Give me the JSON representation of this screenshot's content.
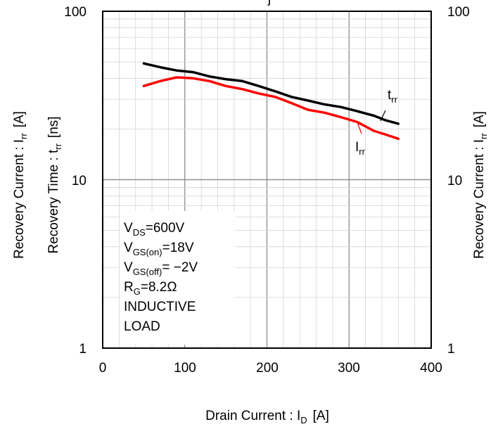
{
  "chart_data": {
    "type": "line",
    "x_axis": {
      "label": "Drain Current : I",
      "label_sub": "D",
      "label_unit": "[A]",
      "range": [
        0,
        400
      ],
      "ticks": [
        "0",
        "100",
        "200",
        "300",
        "400"
      ]
    },
    "y_axis_left": [
      {
        "text": "Recovery Current : I",
        "sub": "rr",
        "unit": "[A]"
      },
      {
        "text": "Recovery Time : t",
        "sub": "rr",
        "unit": "[ns]"
      }
    ],
    "y_axis_right": {
      "text": "Recovery Current : I",
      "sub": "rr",
      "unit": "[A]"
    },
    "y_scale": "log",
    "y_range": [
      1,
      100
    ],
    "y_ticks": [
      "1",
      "10",
      "100"
    ],
    "grid": true,
    "series": [
      {
        "name": "trr",
        "color": "#000000",
        "x": [
          50,
          70,
          90,
          110,
          130,
          150,
          170,
          190,
          210,
          230,
          250,
          270,
          290,
          310,
          330,
          345,
          360
        ],
        "y": [
          49,
          46.5,
          44.5,
          43.5,
          41,
          39.5,
          38.5,
          36,
          33.5,
          31,
          29.5,
          28,
          27,
          25.5,
          24,
          22.5,
          21.5
        ]
      },
      {
        "name": "Irr",
        "color": "#ff0000",
        "x": [
          50,
          70,
          90,
          110,
          130,
          150,
          170,
          190,
          210,
          230,
          250,
          270,
          290,
          310,
          330,
          345,
          360
        ],
        "y": [
          36,
          38.5,
          40.5,
          40,
          38.5,
          36,
          34.5,
          32.5,
          31,
          28.5,
          26,
          25,
          23.5,
          22,
          19.5,
          18.5,
          17.5
        ]
      }
    ],
    "series_labels": [
      {
        "main": "t",
        "sub": "rr"
      },
      {
        "main": "I",
        "sub": "rr"
      }
    ],
    "conditions": [
      {
        "main": "V",
        "sub": "DS",
        "rest": "=600V"
      },
      {
        "main": "V",
        "sub": "GS(on)",
        "rest": "=18V"
      },
      {
        "main": "V",
        "sub": "GS(off)",
        "rest": "= −2V"
      },
      {
        "main": "R",
        "sub": "G",
        "rest": "=8.2Ω"
      },
      {
        "main": "INDUCTIVE",
        "sub": "",
        "rest": ""
      },
      {
        "main": "LOAD",
        "sub": "",
        "rest": ""
      }
    ],
    "title_fragment": "j"
  }
}
